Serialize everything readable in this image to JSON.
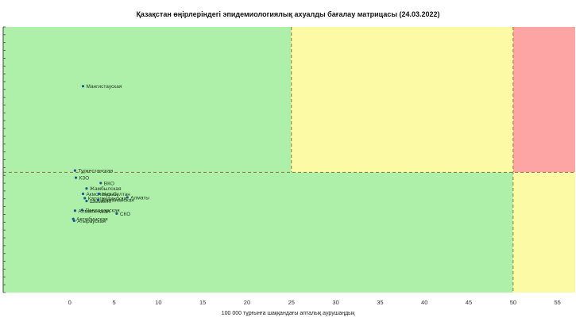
{
  "chart_data": {
    "type": "scatter",
    "title": "Қазақстан өңірлеріндегі эпидемиологиялық ахуалды бағалау матрицасы  (24.03.2022)",
    "xlabel": "100 000 тұрғынға шаққандағы апталық аурушаңдық",
    "ylabel": "",
    "xlim": [
      -7.5,
      57
    ],
    "ylim": [
      -2.35,
      5.05
    ],
    "x_ticks": [
      0,
      5,
      10,
      15,
      20,
      25,
      30,
      35,
      40,
      45,
      50,
      55
    ],
    "x_thresholds": [
      25,
      50
    ],
    "y_threshold": 1.0,
    "zones": [
      {
        "name": "green",
        "color": "#aef0aa"
      },
      {
        "name": "yellow",
        "color": "#fdfaa6"
      },
      {
        "name": "red",
        "color": "#fda5a5"
      }
    ],
    "point_color": "#1a5c8a",
    "points": [
      {
        "label": "Мангистауская",
        "x": 1.5,
        "y": 3.4
      },
      {
        "label": "Туркестанская",
        "x": 0.6,
        "y": 1.05
      },
      {
        "label": "ВКО",
        "x": 3.5,
        "y": 0.7
      },
      {
        "label": "КЗО",
        "x": 0.7,
        "y": 0.85
      },
      {
        "label": "Жамбылская",
        "x": 1.9,
        "y": 0.55
      },
      {
        "label": "Акмолинская",
        "x": 1.5,
        "y": 0.4
      },
      {
        "label": "Нур-Султан",
        "x": 3.3,
        "y": 0.4
      },
      {
        "label": "Алматы",
        "x": 6.5,
        "y": 0.3
      },
      {
        "label": "Карагандинская",
        "x": 1.7,
        "y": 0.28
      },
      {
        "label": "Костанайская",
        "x": 3.2,
        "y": 0.23
      },
      {
        "label": "Шымкент",
        "x": 1.9,
        "y": 0.2
      },
      {
        "label": "Павлодарская",
        "x": 1.4,
        "y": -0.05
      },
      {
        "label": "Алматинская",
        "x": 0.6,
        "y": -0.07
      },
      {
        "label": "СКО",
        "x": 5.3,
        "y": -0.15
      },
      {
        "label": "Актюбинская",
        "x": 0.4,
        "y": -0.3
      },
      {
        "label": "Атырауская",
        "x": 0.5,
        "y": -0.35
      }
    ]
  }
}
